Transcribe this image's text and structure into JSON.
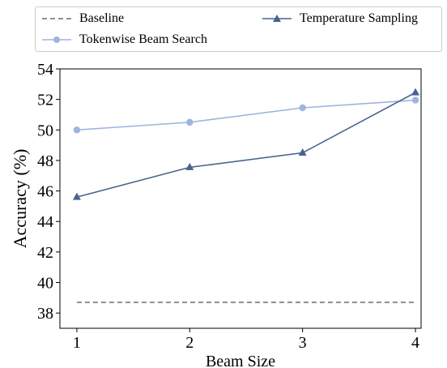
{
  "chart_data": {
    "type": "line",
    "title": "",
    "xlabel": "Beam Size",
    "ylabel": "Accuracy (%)",
    "x": [
      1,
      2,
      3,
      4
    ],
    "xticks": [
      "1",
      "2",
      "3",
      "4"
    ],
    "xlim": [
      0.85,
      4.05
    ],
    "ylim": [
      37.0,
      54.0
    ],
    "yticks": [
      "38",
      "40",
      "42",
      "44",
      "46",
      "48",
      "50",
      "52",
      "54"
    ],
    "grid": false,
    "legend_position": "top",
    "series": [
      {
        "name": "Baseline",
        "style": "dashed",
        "marker": "none",
        "color": "#6b6b6b",
        "values": [
          38.7,
          38.7,
          38.7,
          38.7
        ]
      },
      {
        "name": "Tokenwise Beam Search",
        "style": "solid",
        "marker": "circle",
        "color": "#9db4de",
        "values": [
          50.0,
          50.5,
          51.45,
          51.95
        ]
      },
      {
        "name": "Temperature Sampling",
        "style": "solid",
        "marker": "triangle",
        "color": "#48648c",
        "values": [
          45.6,
          47.55,
          48.5,
          52.45
        ]
      }
    ]
  }
}
